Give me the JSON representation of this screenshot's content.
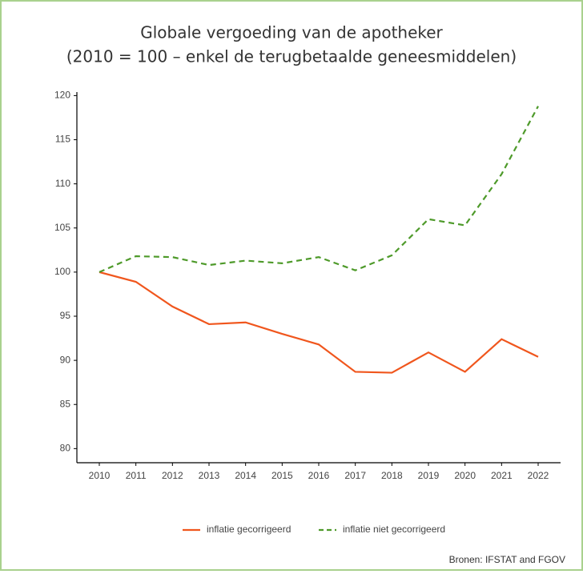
{
  "chart_data": {
    "type": "line",
    "title": "Globale vergoeding van de apotheker",
    "subtitle": "(2010 = 100 – enkel de terugbetaalde geneesmiddelen)",
    "categories": [
      "2010",
      "2011",
      "2012",
      "2013",
      "2014",
      "2015",
      "2016",
      "2017",
      "2018",
      "2019",
      "2020",
      "2021",
      "2022"
    ],
    "series": [
      {
        "name": "inflatie gecorrigeerd",
        "color": "#f0561d",
        "dash": "solid",
        "values": [
          100,
          98.9,
          96.1,
          94.1,
          94.3,
          93.0,
          91.8,
          88.7,
          88.6,
          90.9,
          88.7,
          92.4,
          90.4
        ]
      },
      {
        "name": "inflatie niet gecorrigeerd",
        "color": "#4e9a2a",
        "dash": "dashed",
        "values": [
          100,
          101.8,
          101.7,
          100.8,
          101.3,
          101.0,
          101.7,
          100.2,
          101.9,
          106.0,
          105.3,
          111.1,
          118.8
        ]
      }
    ],
    "ylim": [
      78.4,
      120.4
    ],
    "yticks": [
      80,
      85,
      90,
      95,
      100,
      105,
      110,
      115,
      120
    ],
    "grid": false,
    "legend": "bottom",
    "source": "Bronen: IFSTAT and FGOV"
  }
}
